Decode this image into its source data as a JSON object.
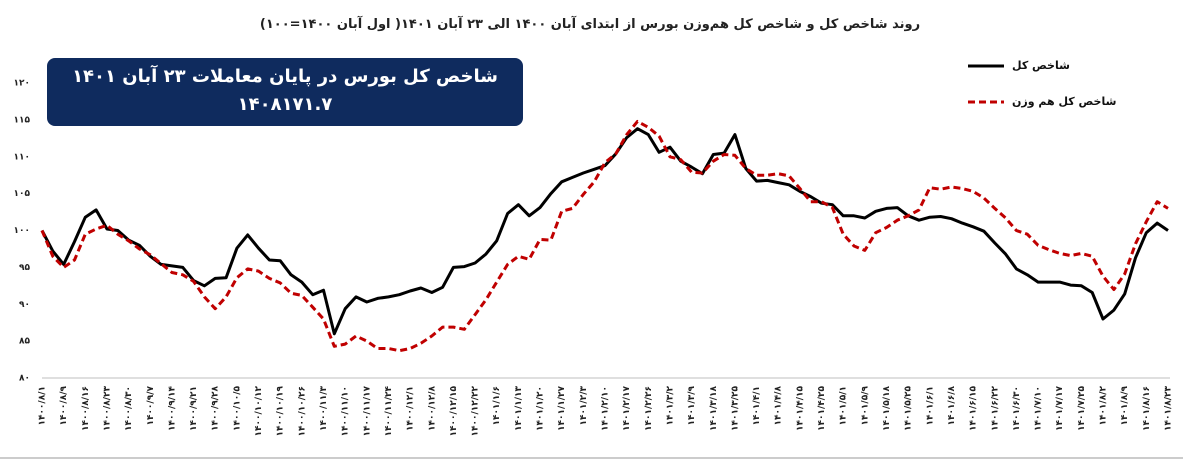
{
  "chart_data": {
    "type": "line",
    "title": "روند شاخص کل و شاخص کل هم‌وزن بورس از ابتدای آبان ۱۴۰۰ الی ۲۳ آبان ۱۴۰۱( اول آبان ۱۴۰۰=۱۰۰)",
    "annotations": [
      "شاخص کل بورس در پایان معاملات ۲۳ آبان ۱۴۰۱",
      "۱۴۰۸۱۷۱.۷"
    ],
    "legend": "top-right",
    "grid": false,
    "ylim": [
      80,
      120
    ],
    "yticks": [
      {
        "value": 80,
        "label": "۸۰"
      },
      {
        "value": 85,
        "label": "۸۵"
      },
      {
        "value": 90,
        "label": "۹۰"
      },
      {
        "value": 95,
        "label": "۹۵"
      },
      {
        "value": 100,
        "label": "۱۰۰"
      },
      {
        "value": 105,
        "label": "۱۰۵"
      },
      {
        "value": 110,
        "label": "۱۱۰"
      },
      {
        "value": 115,
        "label": "۱۱۵"
      },
      {
        "value": 120,
        "label": "۱۲۰"
      }
    ],
    "categories": [
      "۱۴۰۰/۸/۱",
      null,
      "۱۴۰۰/۸/۹",
      null,
      "۱۴۰۰/۸/۱۶",
      null,
      "۱۴۰۰/۸/۲۳",
      null,
      "۱۴۰۰/۸/۳۰",
      null,
      "۱۴۰۰/۹/۷",
      null,
      "۱۴۰۰/۹/۱۴",
      null,
      "۱۴۰۰/۹/۲۱",
      null,
      "۱۴۰۰/۹/۲۸",
      null,
      "۱۴۰۰/۱۰/۵",
      null,
      "۱۴۰۰/۱۰/۱۲",
      null,
      "۱۴۰۰/۱۰/۱۹",
      null,
      "۱۴۰۰/۱۰/۲۶",
      null,
      "۱۴۰۰/۱۱/۳",
      null,
      "۱۴۰۰/۱۱/۱۰",
      null,
      "۱۴۰۰/۱۱/۱۷",
      null,
      "۱۴۰۰/۱۱/۲۴",
      null,
      "۱۴۰۰/۱۲/۱",
      null,
      "۱۴۰۰/۱۲/۸",
      null,
      "۱۴۰۰/۱۲/۱۵",
      null,
      "۱۴۰۰/۱۲/۲۲",
      null,
      "۱۴۰۱/۱/۶",
      null,
      "۱۴۰۱/۱/۱۳",
      null,
      "۱۴۰۱/۱/۲۰",
      null,
      "۱۴۰۱/۱/۲۷",
      null,
      "۱۴۰۱/۲/۳",
      null,
      "۱۴۰۱/۲/۱۰",
      null,
      "۱۴۰۱/۲/۱۷",
      null,
      "۱۴۰۱/۲/۲۶",
      null,
      "۱۴۰۱/۳/۲",
      null,
      "۱۴۰۱/۳/۹",
      null,
      "۱۴۰۱/۳/۱۸",
      null,
      "۱۴۰۱/۳/۲۵",
      null,
      "۱۴۰۱/۴/۱",
      null,
      "۱۴۰۱/۴/۸",
      null,
      "۱۴۰۱/۴/۱۵",
      null,
      "۱۴۰۱/۴/۲۵",
      null,
      "۱۴۰۱/۵/۱",
      null,
      "۱۴۰۱/۵/۹",
      null,
      "۱۴۰۱/۵/۱۸",
      null,
      "۱۴۰۱/۵/۲۵",
      null,
      "۱۴۰۱/۶/۱",
      null,
      "۱۴۰۱/۶/۸",
      null,
      "۱۴۰۱/۶/۱۵",
      null,
      "۱۴۰۱/۶/۲۲",
      null,
      "۱۴۰۱/۶/۳۰",
      null,
      "۱۴۰۱/۷/۱۰",
      null,
      "۱۴۰۱/۷/۱۷",
      null,
      "۱۴۰۱/۷/۲۵",
      null,
      "۱۴۰۱/۸/۲",
      null,
      "۱۴۰۱/۸/۹",
      null,
      "۱۴۰۱/۸/۱۶",
      null,
      "۱۴۰۱/۸/۲۳"
    ],
    "series": [
      {
        "name": "شاخص کل",
        "color": "#000000",
        "dash": false,
        "values": [
          100,
          97.2,
          95.4,
          98.5,
          101.8,
          102.8,
          100.2,
          100,
          98.7,
          98,
          96.5,
          95.4,
          95.2,
          95,
          93.2,
          92.5,
          93.5,
          93.6,
          97.6,
          99.4,
          97.6,
          96,
          95.9,
          94,
          93,
          91.3,
          91.9,
          86,
          89.4,
          91,
          90.3,
          90.8,
          91,
          91.3,
          91.8,
          92.2,
          91.6,
          92.3,
          95,
          95.1,
          95.6,
          96.8,
          98.6,
          102.3,
          103.5,
          102,
          103.1,
          105,
          106.6,
          107.2,
          107.8,
          108.3,
          108.8,
          110.4,
          112.6,
          113.8,
          113,
          110.6,
          111.3,
          109.4,
          108.6,
          107.7,
          110.3,
          110.5,
          113,
          108.4,
          106.7,
          106.8,
          106.5,
          106.2,
          105.3,
          104.6,
          103.7,
          103.5,
          102,
          102,
          101.7,
          102.6,
          103,
          103.1,
          102,
          101.4,
          101.8,
          101.9,
          101.6,
          101,
          100.5,
          99.9,
          98.3,
          96.8,
          94.8,
          94,
          93,
          93,
          93,
          92.6,
          92.5,
          91.6,
          88,
          89.2,
          91.4,
          96.3,
          99.7,
          101,
          100
        ]
      },
      {
        "name": "شاخص کل هم وزن",
        "color": "#c00000",
        "dash": true,
        "values": [
          100,
          96.5,
          95,
          96,
          99.5,
          100.2,
          100.7,
          99.5,
          98.6,
          97.5,
          96.7,
          95.5,
          94.3,
          94,
          93.1,
          91,
          89.4,
          91,
          93.6,
          94.8,
          94.5,
          93.5,
          92.9,
          91.5,
          91.2,
          89.6,
          88,
          84.3,
          84.6,
          85.7,
          85,
          84,
          84,
          83.7,
          84,
          84.7,
          85.7,
          86.9,
          86.9,
          86.6,
          88.6,
          90.6,
          93,
          95.4,
          96.5,
          96.1,
          98.8,
          98.7,
          102.6,
          103,
          104.9,
          106.6,
          109.2,
          110.4,
          113,
          114.8,
          114,
          112.8,
          110,
          109.6,
          107.9,
          107.8,
          109.4,
          110.3,
          110.2,
          108.4,
          107.5,
          107.5,
          107.7,
          107.4,
          105.7,
          103.9,
          103.9,
          103.1,
          99.5,
          97.9,
          97.3,
          99.7,
          100.4,
          101.4,
          102,
          102.8,
          105.8,
          105.6,
          105.9,
          105.7,
          105.3,
          104.4,
          103,
          101.7,
          100,
          99.5,
          98,
          97.4,
          96.9,
          96.6,
          96.9,
          96.5,
          93.8,
          92,
          94.1,
          98.2,
          101.2,
          103.9,
          103
        ]
      }
    ]
  }
}
